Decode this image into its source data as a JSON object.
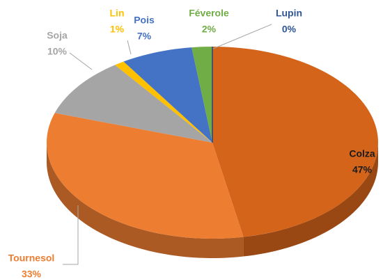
{
  "chart_data": {
    "type": "pie",
    "categories": [
      "Colza",
      "Tournesol",
      "Soja",
      "Lin",
      "Pois",
      "Féverole",
      "Lupin"
    ],
    "values": [
      47,
      33,
      10,
      1,
      7,
      2,
      0
    ],
    "value_labels": [
      "47%",
      "33%",
      "10%",
      "1%",
      "7%",
      "2%",
      "0%"
    ],
    "colors": [
      "#d4641a",
      "#ed7d31",
      "#a5a5a5",
      "#ffc000",
      "#4472c4",
      "#70ad47",
      "#264478"
    ],
    "label_colors": [
      "#1a1a1a",
      "#ed7d31",
      "#a5a5a5",
      "#ffc000",
      "#4472c4",
      "#70ad47",
      "#2f5597"
    ]
  }
}
